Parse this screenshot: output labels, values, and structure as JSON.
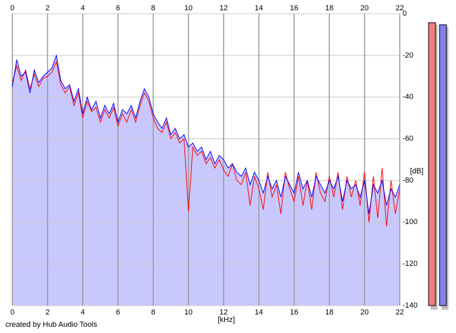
{
  "chart_data": {
    "type": "line",
    "xlabel": "[kHz]",
    "ylabel": "[dB]",
    "footer": "created by Hub Audio Tools",
    "xlim": [
      0,
      22
    ],
    "xticks": [
      0,
      2,
      4,
      6,
      8,
      10,
      12,
      14,
      16,
      18,
      20,
      22
    ],
    "ylim": [
      -140,
      0
    ],
    "yticks": [
      0,
      -20,
      -40,
      -60,
      -80,
      -100,
      -120,
      -140
    ],
    "grid": true,
    "fill_color": "#c8c8ff",
    "x": [
      0,
      0.25,
      0.5,
      0.75,
      1,
      1.25,
      1.5,
      1.75,
      2,
      2.25,
      2.5,
      2.75,
      3,
      3.25,
      3.5,
      3.75,
      4,
      4.25,
      4.5,
      4.75,
      5,
      5.25,
      5.5,
      5.75,
      6,
      6.25,
      6.5,
      6.75,
      7,
      7.25,
      7.5,
      7.75,
      8,
      8.25,
      8.5,
      8.75,
      9,
      9.25,
      9.5,
      9.75,
      10,
      10.25,
      10.5,
      10.75,
      11,
      11.25,
      11.5,
      11.75,
      12,
      12.25,
      12.5,
      12.75,
      13,
      13.25,
      13.5,
      13.75,
      14,
      14.25,
      14.5,
      14.75,
      15,
      15.25,
      15.5,
      15.75,
      16,
      16.25,
      16.5,
      16.75,
      17,
      17.25,
      17.5,
      17.75,
      18,
      18.25,
      18.5,
      18.75,
      19,
      19.25,
      19.5,
      19.75,
      20,
      20.25,
      20.5,
      20.75,
      21,
      21.25,
      21.5,
      21.75,
      22
    ],
    "series": [
      {
        "color": "#ff0000",
        "values": [
          -33,
          -25,
          -32,
          -27,
          -36,
          -29,
          -35,
          -31,
          -30,
          -28,
          -23,
          -34,
          -38,
          -35,
          -44,
          -38,
          -50,
          -42,
          -47,
          -45,
          -52,
          -46,
          -50,
          -45,
          -54,
          -48,
          -52,
          -46,
          -52,
          -44,
          -38,
          -42,
          -50,
          -55,
          -57,
          -52,
          -60,
          -57,
          -62,
          -60,
          -95,
          -64,
          -68,
          -66,
          -72,
          -69,
          -74,
          -70,
          -75,
          -78,
          -72,
          -80,
          -82,
          -76,
          -92,
          -78,
          -84,
          -94,
          -76,
          -88,
          -82,
          -96,
          -76,
          -84,
          -90,
          -78,
          -92,
          -80,
          -94,
          -76,
          -86,
          -90,
          -78,
          -88,
          -76,
          -94,
          -78,
          -88,
          -80,
          -92,
          -76,
          -100,
          -78,
          -98,
          -74,
          -102,
          -80,
          -96,
          -84
        ]
      },
      {
        "color": "#0000ff",
        "values": [
          -35,
          -22,
          -30,
          -28,
          -38,
          -27,
          -33,
          -30,
          -28,
          -26,
          -20,
          -32,
          -36,
          -34,
          -42,
          -36,
          -48,
          -40,
          -46,
          -42,
          -50,
          -44,
          -48,
          -43,
          -52,
          -46,
          -48,
          -44,
          -50,
          -42,
          -36,
          -40,
          -48,
          -52,
          -55,
          -50,
          -58,
          -55,
          -60,
          -58,
          -64,
          -62,
          -66,
          -64,
          -70,
          -66,
          -72,
          -68,
          -70,
          -74,
          -72,
          -76,
          -78,
          -74,
          -82,
          -76,
          -80,
          -86,
          -78,
          -84,
          -80,
          -88,
          -78,
          -82,
          -86,
          -76,
          -84,
          -80,
          -88,
          -78,
          -82,
          -86,
          -80,
          -84,
          -78,
          -90,
          -80,
          -84,
          -82,
          -88,
          -80,
          -96,
          -82,
          -86,
          -80,
          -92,
          -84,
          -88,
          -82
        ]
      }
    ],
    "meters": [
      {
        "color": "#f08080",
        "value": -4.3
      },
      {
        "color": "#8080f0",
        "value": -5.3
      }
    ]
  }
}
